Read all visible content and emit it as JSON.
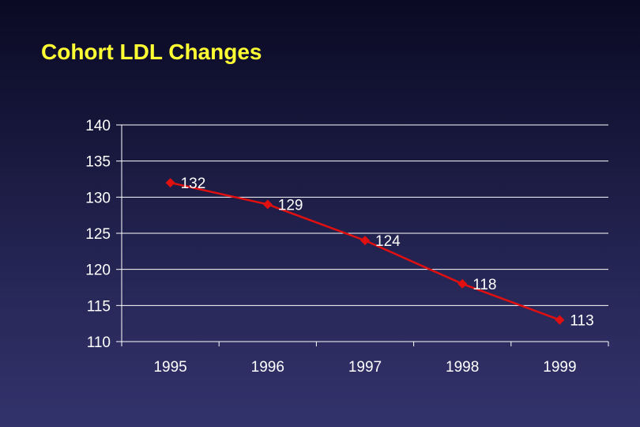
{
  "title": "Cohort LDL Changes",
  "colors": {
    "title": "#ffff33",
    "series": "#e01010",
    "text": "#ffffff",
    "grid": "#ffffff"
  },
  "chart_data": {
    "type": "line",
    "title": "Cohort LDL Changes",
    "categories": [
      "1995",
      "1996",
      "1997",
      "1998",
      "1999"
    ],
    "series": [
      {
        "values": [
          132,
          129,
          124,
          118,
          113
        ]
      }
    ],
    "ylim": [
      110,
      140
    ],
    "yticks": [
      110,
      115,
      120,
      125,
      130,
      135,
      140
    ],
    "marker": "diamond",
    "data_labels": true,
    "grid": true,
    "legend": "none"
  }
}
